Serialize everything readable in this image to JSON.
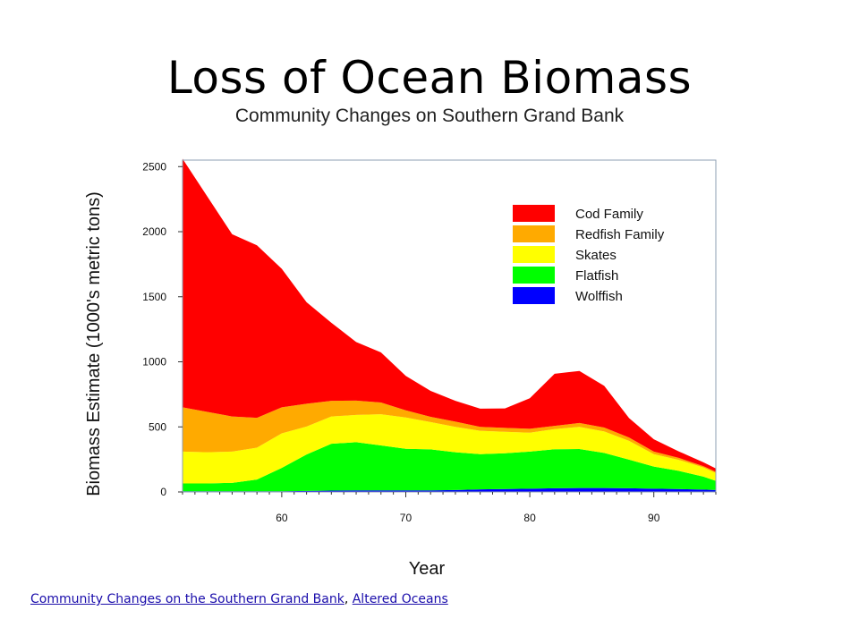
{
  "slide": {
    "title": "Loss of Ocean Biomass"
  },
  "footer": {
    "link1": "Community Changes on the Southern Grand Bank",
    "separator": ", ",
    "link2": "Altered Oceans"
  },
  "chart_data": {
    "type": "area",
    "stacked": true,
    "title": "Community Changes on Southern Grand Bank",
    "xlabel": "Year",
    "ylabel": "Biomass Estimate (1000's metric tons)",
    "xlim": [
      52,
      95
    ],
    "ylim": [
      0,
      2550
    ],
    "xticks": [
      60,
      70,
      80,
      90
    ],
    "yticks": [
      0,
      500,
      1000,
      1500,
      2000,
      2500
    ],
    "grid": false,
    "legend": "top-right",
    "x": [
      52,
      54,
      56,
      58,
      60,
      62,
      64,
      66,
      68,
      70,
      72,
      74,
      76,
      78,
      80,
      82,
      84,
      86,
      88,
      90,
      92,
      94,
      95
    ],
    "series": [
      {
        "name": "Wolffish",
        "color": "#0000ff",
        "values": [
          5,
          5,
          5,
          5,
          5,
          8,
          10,
          12,
          12,
          12,
          12,
          15,
          20,
          22,
          25,
          28,
          30,
          30,
          28,
          25,
          22,
          18,
          15
        ]
      },
      {
        "name": "Flatfish",
        "color": "#00ff00",
        "values": [
          60,
          60,
          65,
          90,
          180,
          280,
          360,
          370,
          345,
          320,
          315,
          290,
          270,
          275,
          285,
          300,
          300,
          270,
          220,
          170,
          140,
          100,
          70
        ]
      },
      {
        "name": "Skates",
        "color": "#ffff00",
        "values": [
          245,
          240,
          240,
          245,
          265,
          215,
          210,
          210,
          240,
          240,
          210,
          195,
          180,
          165,
          145,
          155,
          170,
          165,
          145,
          95,
          85,
          70,
          60
        ]
      },
      {
        "name": "Redfish Family",
        "color": "#ffaa00",
        "values": [
          340,
          310,
          270,
          230,
          200,
          175,
          120,
          110,
          90,
          55,
          40,
          40,
          30,
          30,
          30,
          25,
          30,
          30,
          25,
          20,
          15,
          10,
          10
        ]
      },
      {
        "name": "Cod Family",
        "color": "#ff0000",
        "values": [
          1910,
          1655,
          1400,
          1325,
          1065,
          780,
          600,
          450,
          385,
          265,
          200,
          160,
          140,
          150,
          235,
          400,
          400,
          320,
          150,
          95,
          50,
          30,
          25
        ]
      }
    ]
  }
}
